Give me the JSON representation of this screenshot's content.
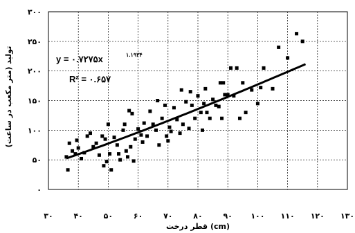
{
  "chart_data": {
    "type": "scatter",
    "xlabel": "قطر درخت (cm)",
    "ylabel": "تولید (متر مکعب در ساعت)",
    "xlim": [
      30,
      130
    ],
    "ylim": [
      0,
      300
    ],
    "x_ticks": [
      30,
      40,
      50,
      60,
      70,
      80,
      90,
      100,
      110,
      120,
      130
    ],
    "y_ticks": [
      0,
      50,
      100,
      150,
      200,
      250,
      300
    ],
    "x_tick_labels": [
      "۳۰",
      "۴۰",
      "۵۰",
      "۶۰",
      "۷۰",
      "۸۰",
      "۹۰",
      "۱۰۰",
      "۱۱۰",
      "۱۲۰",
      "۱۳۰"
    ],
    "y_tick_labels": [
      "۰",
      "۵۰",
      "۱۰۰",
      "۱۵۰",
      "۲۰۰",
      "۲۵۰",
      "۳۰۰"
    ],
    "grid": true,
    "legend": "none",
    "trendline": {
      "type": "power",
      "a": 0.7275,
      "b": 1.1934,
      "equation": "y = ۰.۷۲۷۵x",
      "exponent_label": "۱.۱۹۳۴",
      "r2_label": "R² = ۰.۶۵۷",
      "x_range": [
        36,
        116
      ]
    },
    "series": [
      {
        "points": [
          [
            36,
            55
          ],
          [
            36.5,
            33
          ],
          [
            37,
            78
          ],
          [
            38,
            65
          ],
          [
            39,
            60
          ],
          [
            39.5,
            83
          ],
          [
            40,
            70
          ],
          [
            41,
            52
          ],
          [
            42,
            62
          ],
          [
            43,
            90
          ],
          [
            44,
            95
          ],
          [
            45,
            72
          ],
          [
            46,
            78
          ],
          [
            47,
            58
          ],
          [
            48,
            90
          ],
          [
            48.5,
            40
          ],
          [
            49,
            85
          ],
          [
            49.5,
            47
          ],
          [
            50,
            110
          ],
          [
            50.5,
            60
          ],
          [
            51,
            33
          ],
          [
            52,
            88
          ],
          [
            53,
            75
          ],
          [
            53.5,
            60
          ],
          [
            54,
            50
          ],
          [
            55,
            100
          ],
          [
            55.5,
            110
          ],
          [
            56,
            65
          ],
          [
            56.5,
            55
          ],
          [
            57,
            133
          ],
          [
            57.5,
            72
          ],
          [
            58,
            128
          ],
          [
            58.5,
            48
          ],
          [
            59,
            85
          ],
          [
            60,
            102
          ],
          [
            61,
            92
          ],
          [
            61.5,
            80
          ],
          [
            62,
            112
          ],
          [
            63,
            90
          ],
          [
            64,
            132
          ],
          [
            65,
            110
          ],
          [
            66,
            100
          ],
          [
            66.5,
            150
          ],
          [
            67,
            75
          ],
          [
            68,
            120
          ],
          [
            69,
            142
          ],
          [
            69.5,
            90
          ],
          [
            70,
            82
          ],
          [
            70.5,
            105
          ],
          [
            71,
            98
          ],
          [
            72,
            138
          ],
          [
            73,
            118
          ],
          [
            74,
            95
          ],
          [
            74.5,
            168
          ],
          [
            75,
            110
          ],
          [
            76,
            148
          ],
          [
            77,
            103
          ],
          [
            77.5,
            165
          ],
          [
            78,
            142
          ],
          [
            79,
            120
          ],
          [
            80,
            158
          ],
          [
            81,
            130
          ],
          [
            81.5,
            100
          ],
          [
            82,
            145
          ],
          [
            82.5,
            170
          ],
          [
            83,
            130
          ],
          [
            84,
            120
          ],
          [
            85,
            152
          ],
          [
            86,
            142
          ],
          [
            87,
            140
          ],
          [
            87.5,
            180
          ],
          [
            88,
            120
          ],
          [
            88.5,
            180
          ],
          [
            89,
            160
          ],
          [
            90,
            160
          ],
          [
            91,
            205
          ],
          [
            92,
            158
          ],
          [
            93,
            205
          ],
          [
            94,
            120
          ],
          [
            95,
            180
          ],
          [
            96,
            130
          ],
          [
            98,
            168
          ],
          [
            100,
            145
          ],
          [
            101,
            172
          ],
          [
            102,
            205
          ],
          [
            105,
            170
          ],
          [
            107,
            240
          ],
          [
            110,
            222
          ],
          [
            113,
            263
          ],
          [
            115,
            250
          ]
        ]
      }
    ]
  }
}
